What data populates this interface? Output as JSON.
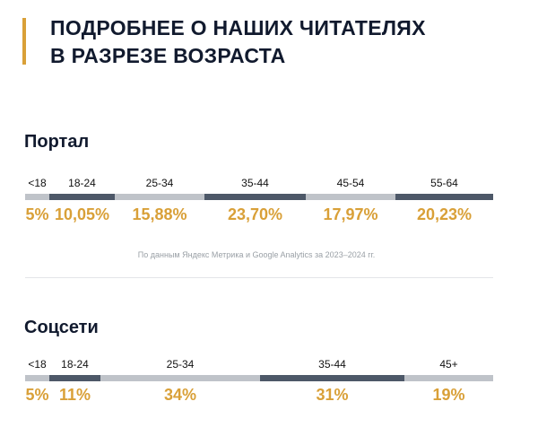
{
  "title_line1": "ПОДРОБНЕЕ О НАШИХ ЧИТАТЕЛЯХ",
  "title_line2": "В РАЗРЕЗЕ ВОЗРАСТА",
  "portal": {
    "heading": "Портал",
    "segments": [
      {
        "label": "<18",
        "value": "5%"
      },
      {
        "label": "18-24",
        "value": "10,05%"
      },
      {
        "label": "25-34",
        "value": "15,88%"
      },
      {
        "label": "35-44",
        "value": "23,70%"
      },
      {
        "label": "45-54",
        "value": "17,97%"
      },
      {
        "label": "55-64",
        "value": "20,23%"
      }
    ]
  },
  "source": "По данным Яндекс Метрика и Google Analytics за 2023–2024 гг.",
  "social": {
    "heading": "Соцсети",
    "segments": [
      {
        "label": "<18",
        "value": "5%"
      },
      {
        "label": "18-24",
        "value": "11%"
      },
      {
        "label": "25-34",
        "value": "34%"
      },
      {
        "label": "35-44",
        "value": "31%"
      },
      {
        "label": "45+",
        "value": "19%"
      }
    ]
  },
  "colors": {
    "accent": "#d9a038",
    "dark": "#4d5868",
    "light": "#bfc3c9"
  }
}
